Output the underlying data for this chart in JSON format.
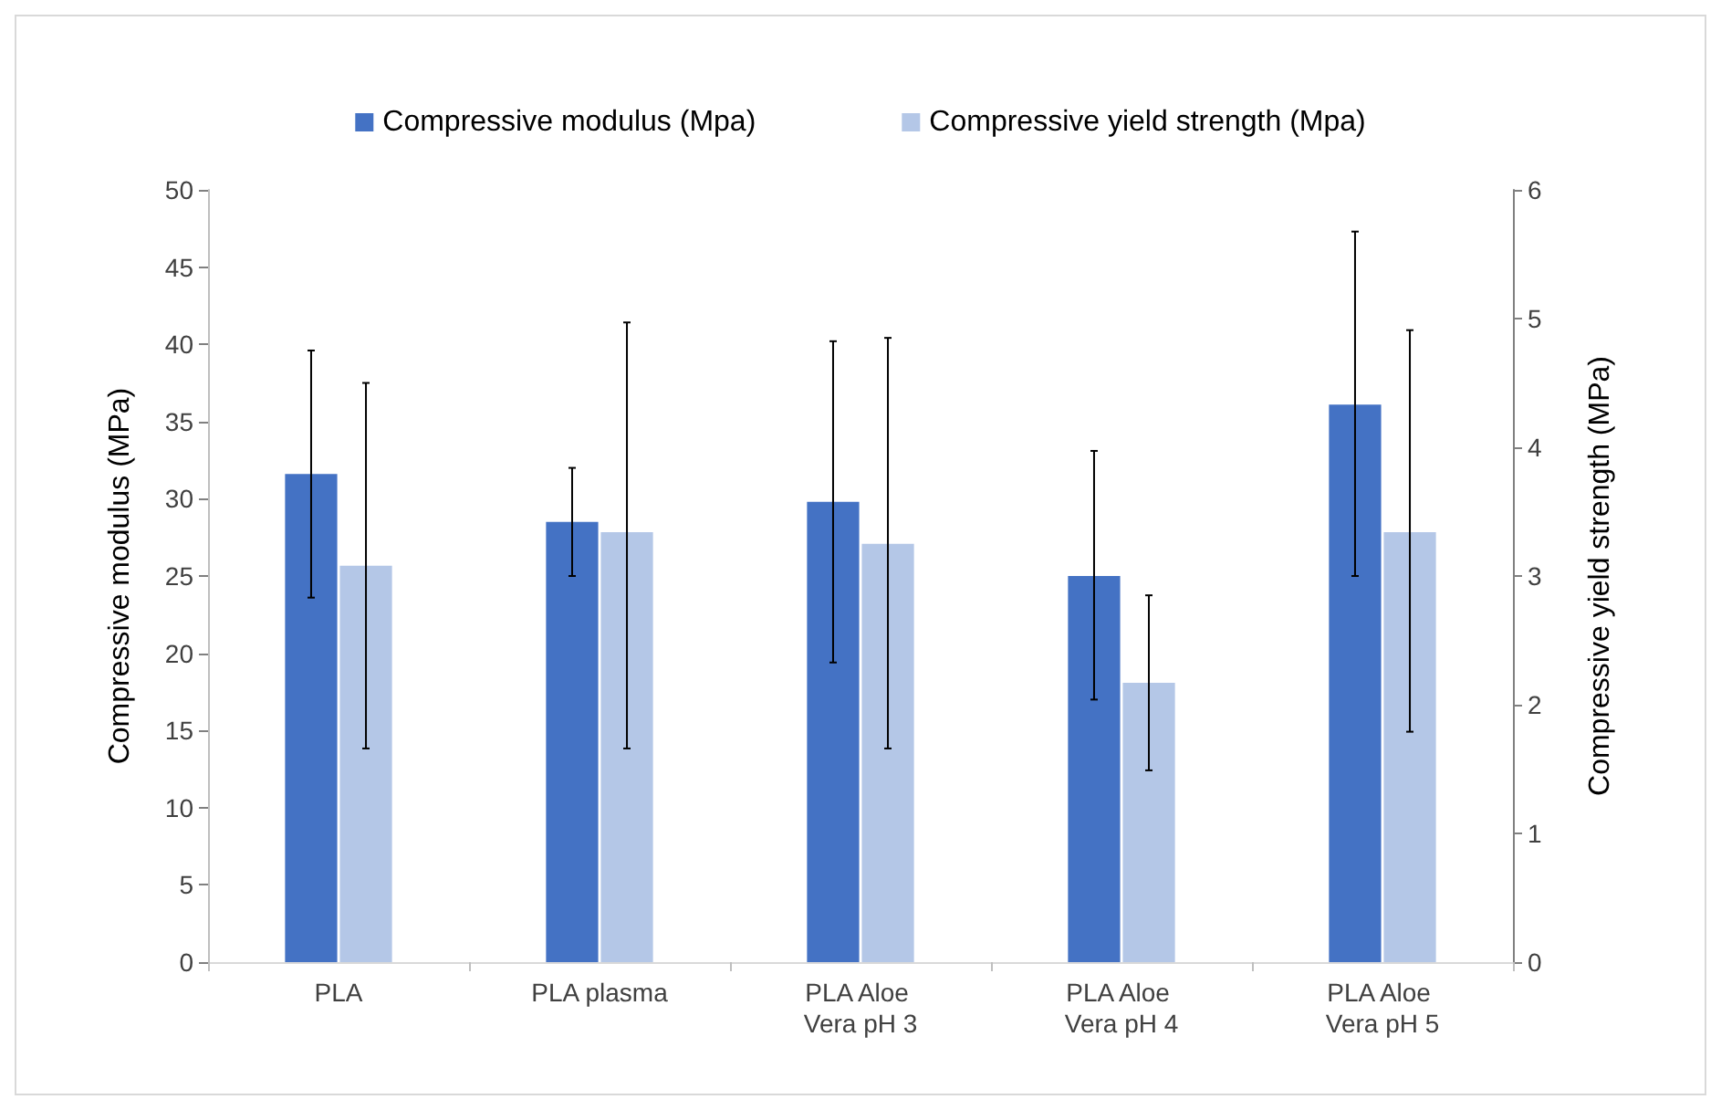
{
  "chart_data": {
    "type": "bar",
    "categories": [
      "PLA",
      "PLA plasma",
      "PLA Aloe Vera pH 3",
      "PLA Aloe Vera pH 4",
      "PLA Aloe Vera pH 5"
    ],
    "series": [
      {
        "name": "Compressive modulus (Mpa)",
        "color": "#4472c4",
        "values": [
          31.6,
          28.5,
          29.8,
          25.0,
          36.1
        ],
        "errors": [
          [
            23.6,
            39.6
          ],
          [
            25.0,
            32.0
          ],
          [
            19.4,
            40.2
          ],
          [
            17.0,
            33.1
          ],
          [
            25.0,
            47.3
          ]
        ]
      },
      {
        "name": "Compressive yield strength (Mpa)",
        "color": "#b4c7e7",
        "axis": "y2",
        "values": [
          3.08,
          3.34,
          3.25,
          2.17,
          3.34
        ],
        "errors": [
          [
            1.66,
            4.5
          ],
          [
            1.66,
            4.97
          ],
          [
            1.66,
            4.85
          ],
          [
            1.49,
            2.85
          ],
          [
            1.79,
            4.91
          ]
        ]
      }
    ],
    "ylabel": "Compressive modulus (MPa)",
    "y2label": "Compressive yield strength (MPa)",
    "ylim": [
      0,
      50
    ],
    "yticks": [
      0,
      5,
      10,
      15,
      20,
      25,
      30,
      35,
      40,
      45,
      50
    ],
    "y2lim": [
      0,
      6
    ],
    "y2ticks": [
      0,
      1,
      2,
      3,
      4,
      5,
      6
    ],
    "legend": "top",
    "grid": false
  }
}
